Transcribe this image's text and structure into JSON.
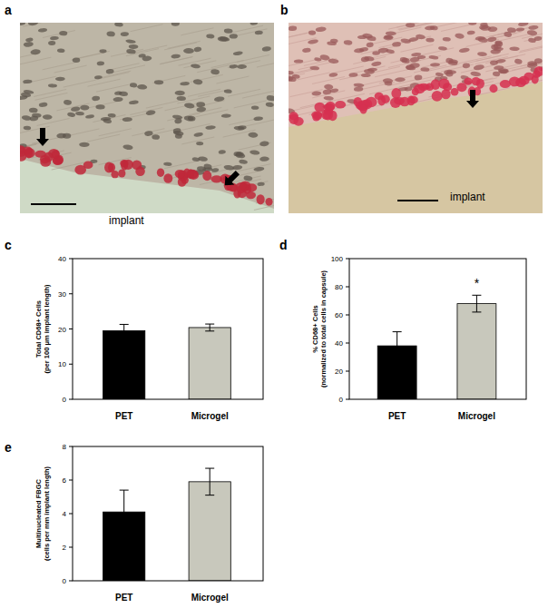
{
  "images": [
    {
      "label": "a",
      "text": "implant"
    },
    {
      "label": "b",
      "text": "implant"
    }
  ],
  "chart_data": [
    {
      "type": "bar",
      "annotations": [
        {
          "text": "c"
        }
      ],
      "y_label": "Total CD68+ Cells\n(per 100 μm implant length)",
      "categories": [
        "PET",
        "Microgel"
      ],
      "values": [
        19.5,
        20.4
      ],
      "errors": [
        1.8,
        1.0
      ],
      "colors": [
        "#000000",
        "#c8c8bc"
      ],
      "ylim": [
        0,
        40
      ],
      "yticks": [
        0,
        10,
        20,
        30,
        40
      ],
      "grid": false
    },
    {
      "type": "bar",
      "annotations": [
        {
          "text": "d"
        },
        {
          "text": "*",
          "category": 1
        }
      ],
      "y_label": "% CD68+ Cells\n(normalized to total cells in capsule)",
      "categories": [
        "PET",
        "Microgel"
      ],
      "values": [
        38,
        68
      ],
      "errors": [
        10,
        6
      ],
      "colors": [
        "#000000",
        "#c8c8bc"
      ],
      "ylim": [
        0,
        100
      ],
      "yticks": [
        0,
        20,
        40,
        60,
        80,
        100
      ],
      "grid": false
    },
    {
      "type": "bar",
      "annotations": [
        {
          "text": "e"
        }
      ],
      "y_label": "Multinucleated FBGC\n(cells per mm implant length)",
      "categories": [
        "PET",
        "Microgel"
      ],
      "values": [
        4.1,
        5.9
      ],
      "errors": [
        1.3,
        0.8
      ],
      "colors": [
        "#000000",
        "#c8c8bc"
      ],
      "ylim": [
        0,
        8
      ],
      "yticks": [
        0,
        2,
        4,
        6,
        8
      ],
      "grid": false
    }
  ]
}
